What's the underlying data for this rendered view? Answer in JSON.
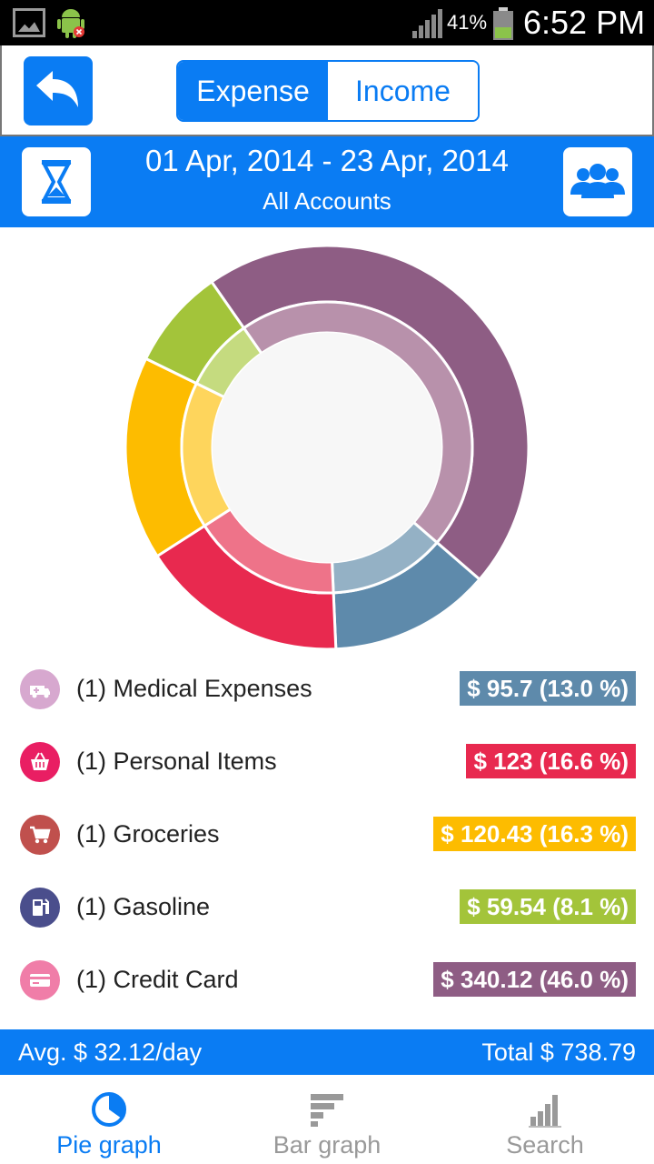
{
  "status_bar": {
    "battery_percent": "41%",
    "time": "6:52 PM"
  },
  "header": {
    "tabs": [
      {
        "label": "Expense",
        "active": true
      },
      {
        "label": "Income",
        "active": false
      }
    ]
  },
  "date_bar": {
    "range": "01 Apr, 2014 - 23 Apr, 2014",
    "accounts": "All Accounts"
  },
  "chart_data": {
    "type": "pie",
    "categories": [
      "Credit Card",
      "Medical Expenses",
      "Personal Items",
      "Groceries",
      "Gasoline"
    ],
    "values": [
      340.12,
      95.7,
      123,
      120.43,
      59.54
    ],
    "percents": [
      46.0,
      13.0,
      16.6,
      16.3,
      8.1
    ],
    "colors": [
      "#8e5d84",
      "#5e8aab",
      "#e8294f",
      "#fdbc00",
      "#a3c43a"
    ],
    "inner_colors": [
      "#b891ab",
      "#94b1c5",
      "#ee7389",
      "#fed55c",
      "#c5db7f"
    ]
  },
  "legend": [
    {
      "label": "(1) Medical Expenses",
      "amount": "$ 95.7 (13.0 %)",
      "color": "#5e8aab",
      "icon": "ambulance-icon",
      "icon_bg": "#d7a8cf"
    },
    {
      "label": "(1) Personal Items",
      "amount": "$ 123 (16.6 %)",
      "color": "#e8294f",
      "icon": "basket-icon",
      "icon_bg": "#e91e63"
    },
    {
      "label": "(1) Groceries",
      "amount": "$ 120.43 (16.3 %)",
      "color": "#fdbc00",
      "icon": "cart-icon",
      "icon_bg": "#c0504d"
    },
    {
      "label": "(1) Gasoline",
      "amount": "$ 59.54 (8.1 %)",
      "color": "#a3c43a",
      "icon": "gas-pump-icon",
      "icon_bg": "#4a4e8c"
    },
    {
      "label": "(1) Credit Card",
      "amount": "$ 340.12 (46.0 %)",
      "color": "#8e5d84",
      "icon": "credit-card-icon",
      "icon_bg": "#f07da8"
    }
  ],
  "summary": {
    "avg": "Avg. $ 32.12/day",
    "total": "Total $ 738.79"
  },
  "bottom_nav": [
    {
      "label": "Pie graph",
      "icon": "pie-chart-icon",
      "active": true
    },
    {
      "label": "Bar graph",
      "icon": "bar-chart-icon",
      "active": false
    },
    {
      "label": "Search",
      "icon": "search-chart-icon",
      "active": false
    }
  ]
}
